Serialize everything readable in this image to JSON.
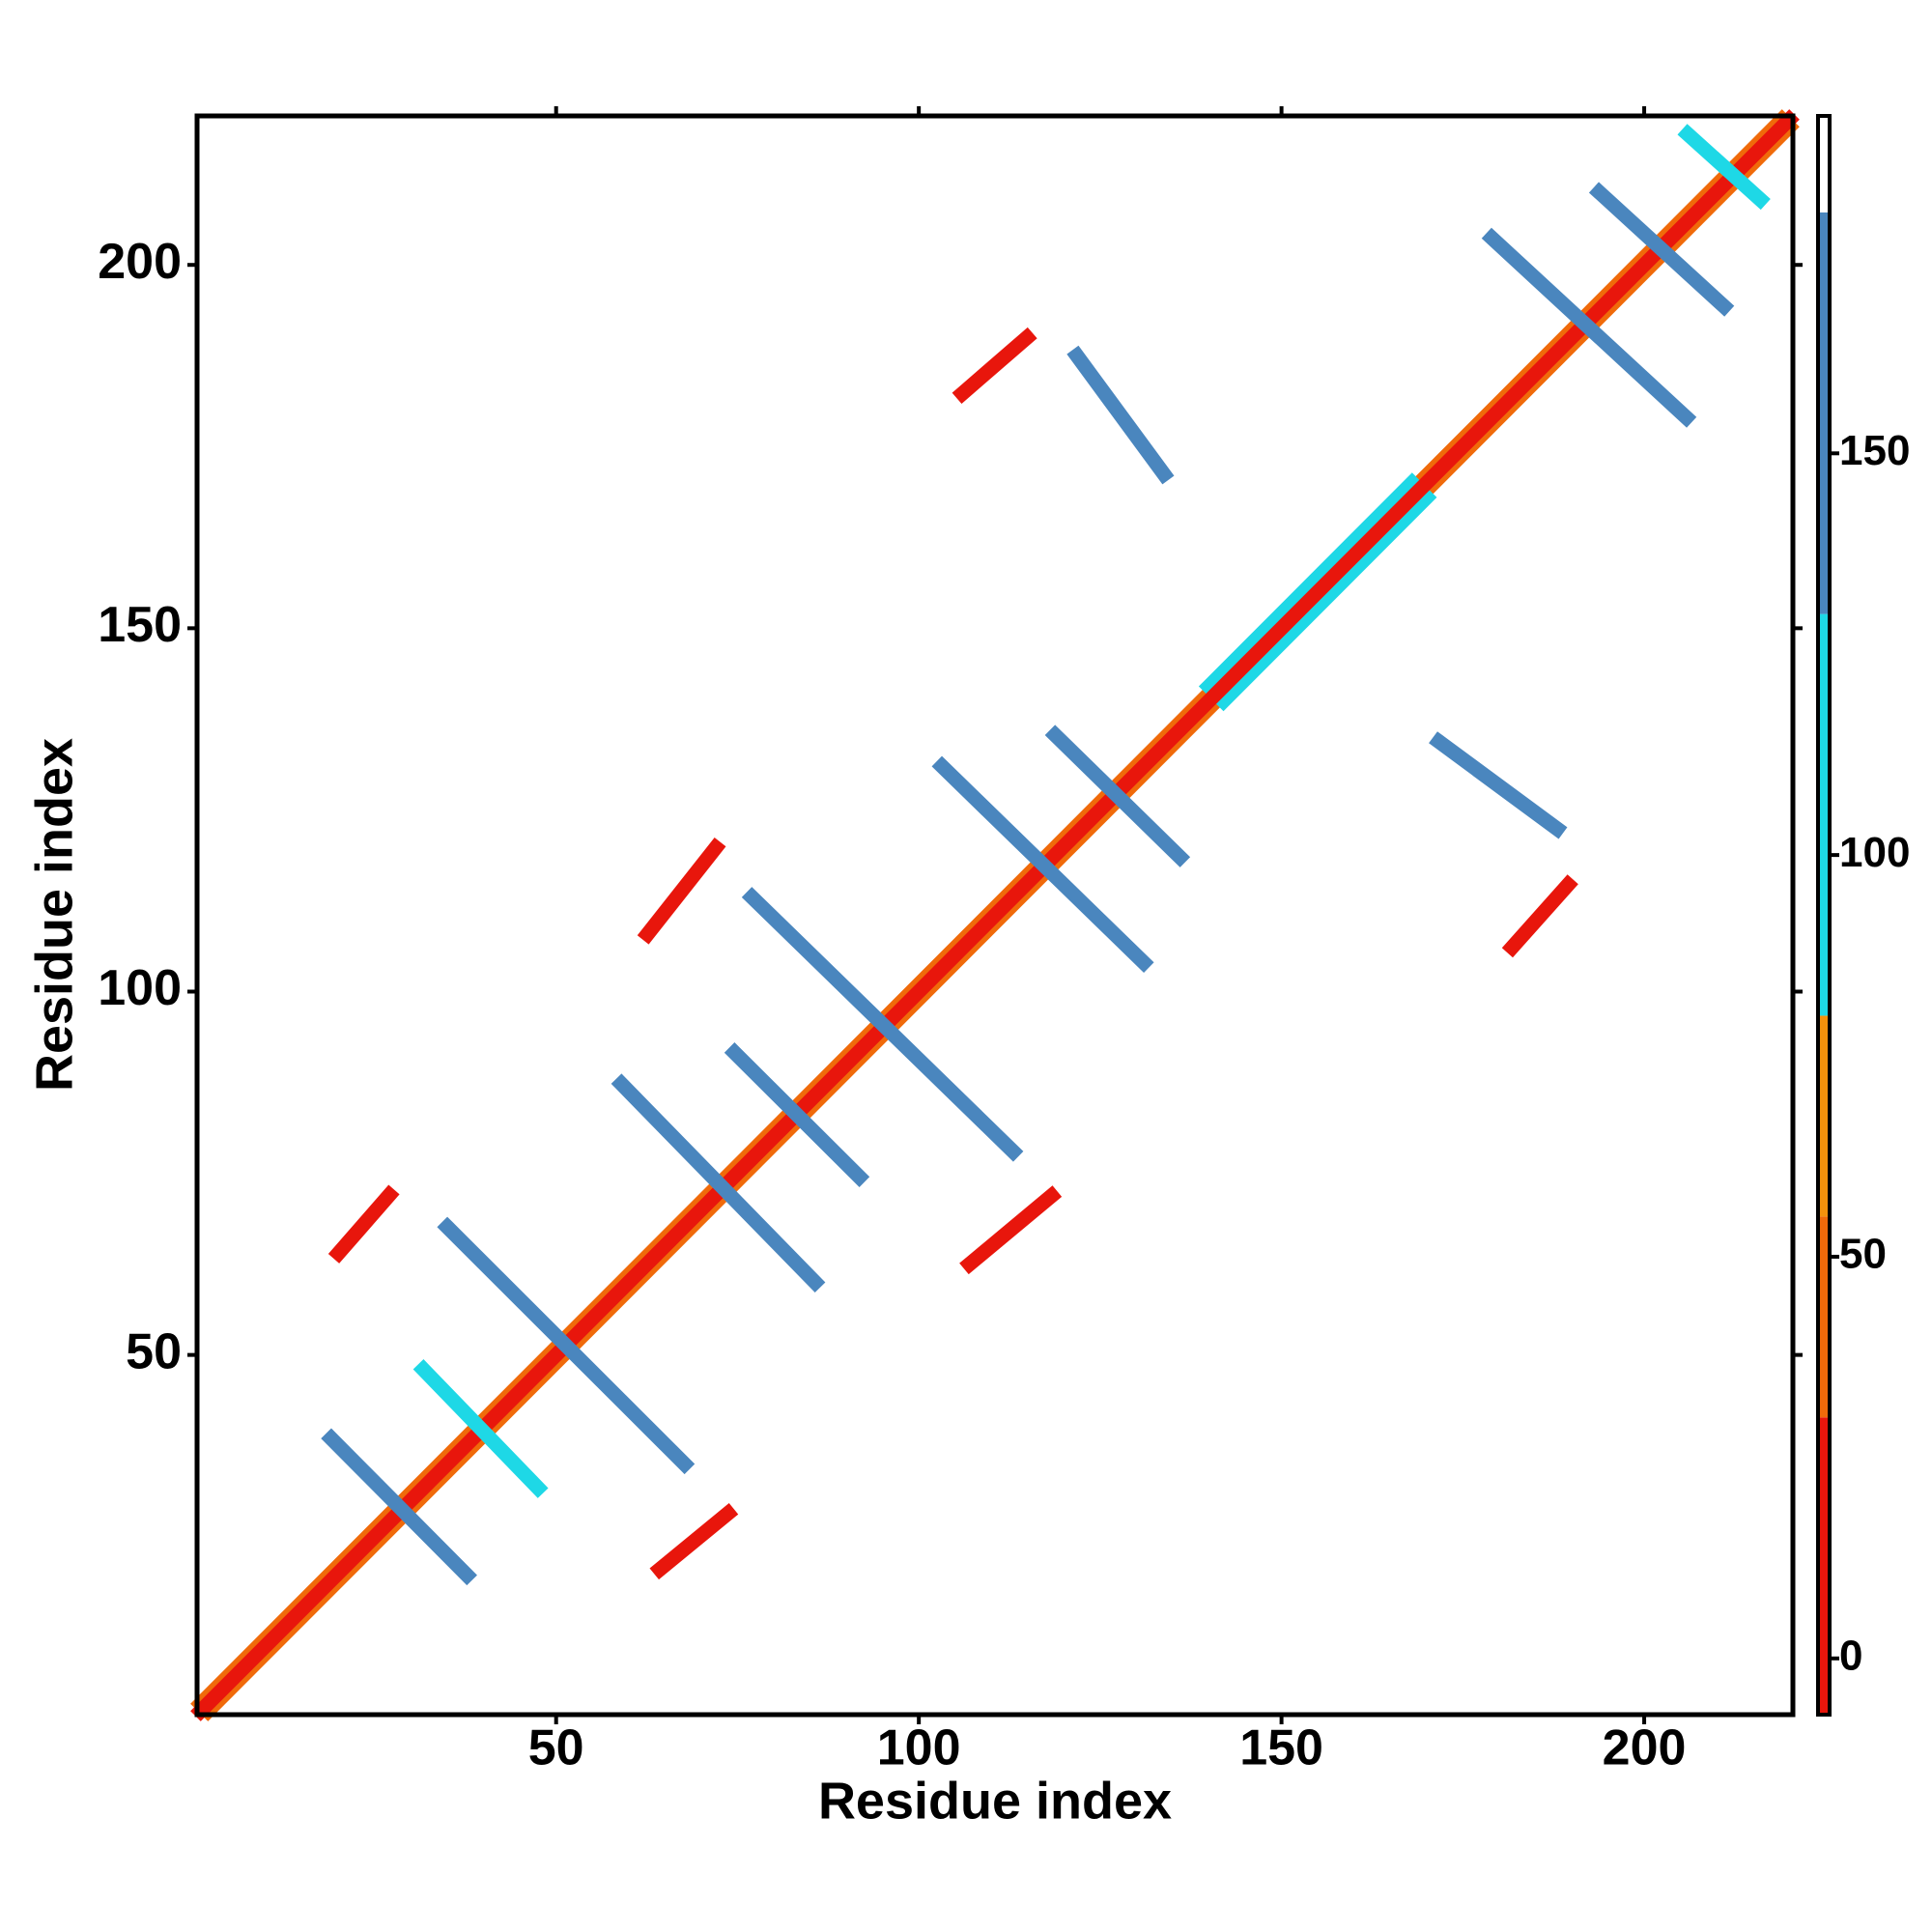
{
  "chart_data": {
    "type": "contact_map",
    "xlabel": "Residue index",
    "ylabel": "Residue index",
    "xlim": [
      0.5,
      220.5
    ],
    "ylim": [
      0.5,
      220.5
    ],
    "xticks": [
      50,
      100,
      150,
      200
    ],
    "yticks": [
      50,
      100,
      150,
      200
    ],
    "segments": [
      [
        2,
        1,
        220,
        219,
        45
      ],
      [
        1,
        2,
        219,
        220,
        45
      ],
      [
        142,
        140,
        170,
        168,
        95
      ],
      [
        140,
        142,
        168,
        170,
        95
      ],
      [
        1,
        1,
        220,
        220,
        0
      ],
      [
        19,
        38.5,
        37.7,
        19.7,
        150
      ],
      [
        31.7,
        48,
        47.5,
        31.7,
        105
      ],
      [
        35,
        67.6,
        67.7,
        35,
        150
      ],
      [
        59,
        87.3,
        85.7,
        60,
        150
      ],
      [
        74.6,
        91.6,
        91.8,
        74.5,
        150
      ],
      [
        77,
        113,
        113,
        78,
        150
      ],
      [
        103.2,
        131,
        131,
        104,
        150
      ],
      [
        118.8,
        135.3,
        136,
        118.5,
        150
      ],
      [
        179,
        203.7,
        205.8,
        179,
        150
      ],
      [
        193.8,
        210,
        211,
        194.3,
        150
      ],
      [
        206,
        218,
        216,
        209,
        120
      ],
      [
        171.7,
        134.4,
        188,
        122.4,
        150
      ],
      [
        121.8,
        187.5,
        133.8,
        171.2,
        150
      ],
      [
        20,
        64,
        27,
        72,
        5
      ],
      [
        64.3,
        20.5,
        73.7,
        28.2,
        5
      ],
      [
        62.6,
        107.9,
        72,
        119.8,
        5
      ],
      [
        107,
        62.5,
        118.3,
        71.9,
        5
      ],
      [
        106,
        182.3,
        114.9,
        190,
        5
      ],
      [
        181.8,
        106.1,
        189.5,
        114.7,
        5
      ]
    ],
    "colorbar": {
      "lim": [
        -7,
        192
      ],
      "ticks": [
        0,
        50,
        100,
        150
      ],
      "bands": [
        {
          "from": -7,
          "to": 30,
          "color": "#e8160c"
        },
        {
          "from": 30,
          "to": 55,
          "color": "#f06a0a"
        },
        {
          "from": 55,
          "to": 80,
          "color": "#f4920c"
        },
        {
          "from": 80,
          "to": 130,
          "color": "#1ed8e6"
        },
        {
          "from": 130,
          "to": 180,
          "color": "#4a86be"
        },
        {
          "from": 180,
          "to": 192,
          "color": "#ffffff"
        }
      ]
    }
  }
}
